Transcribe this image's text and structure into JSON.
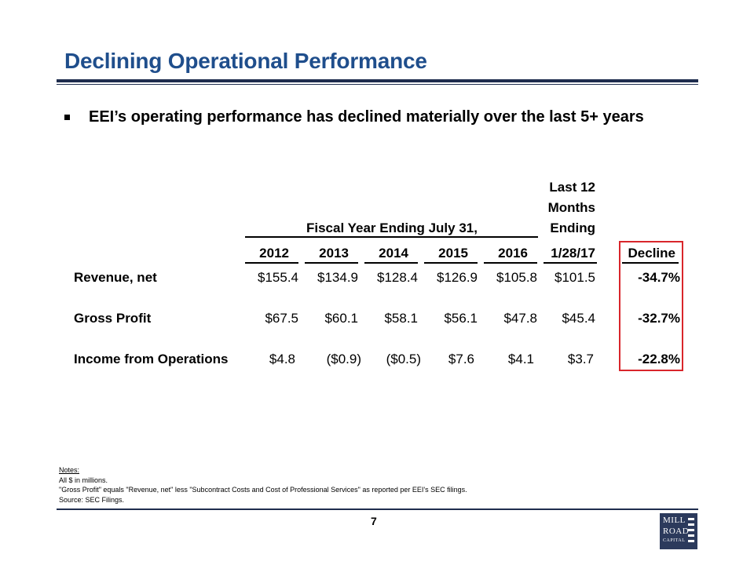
{
  "title": "Declining Operational Performance",
  "bullet": "EEI’s operating performance has declined materially over the last 5+ years",
  "table": {
    "group_header": "Fiscal Year Ending July 31,",
    "ltm_header": [
      "Last 12",
      "Months",
      "Ending"
    ],
    "columns": [
      "2012",
      "2013",
      "2014",
      "2015",
      "2016",
      "1/28/17",
      "Decline"
    ],
    "rows": [
      {
        "label": "Revenue, net",
        "values": [
          "$155.4",
          "$134.9",
          "$128.4",
          "$126.9",
          "$105.8",
          "$101.5"
        ],
        "decline": "-34.7%"
      },
      {
        "label": "Gross Profit",
        "values": [
          "$67.5",
          "$60.1",
          "$58.1",
          "$56.1",
          "$47.8",
          "$45.4"
        ],
        "decline": "-32.7%"
      },
      {
        "label": "Income from Operations",
        "values": [
          "$4.8",
          "($0.9)",
          "($0.5)",
          "$7.6",
          "$4.1",
          "$3.7"
        ],
        "decline": "-22.8%"
      }
    ],
    "highlight_color": "#d9262b"
  },
  "notes": {
    "label": "Notes:",
    "lines": [
      "All $ in millions.",
      "\"Gross Profit\" equals \"Revenue, net\" less \"Subcontract Costs and Cost of Professional Services\" as reported per EEI's SEC filings.",
      "Source: SEC Filings."
    ]
  },
  "page_number": "7",
  "logo": {
    "line1": "MILL",
    "line2": "ROAD",
    "line3": "CAPITAL"
  },
  "colors": {
    "title": "#1f4e8c",
    "rule": "#1f2d4e",
    "logo_bg": "#2c3a5c"
  }
}
